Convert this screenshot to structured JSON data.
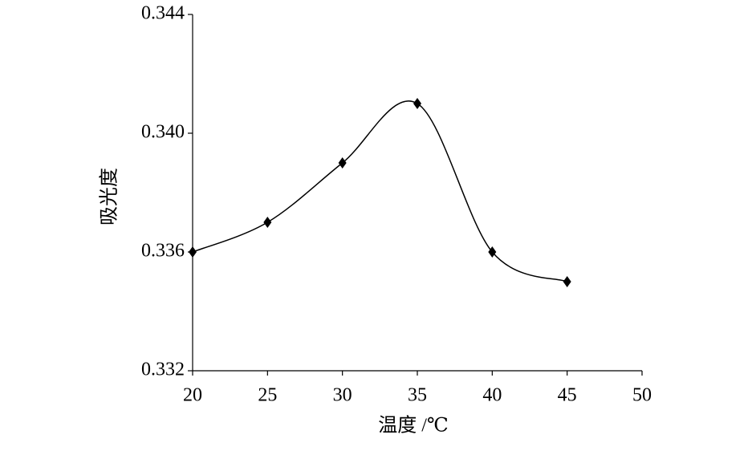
{
  "chart_data": {
    "type": "line",
    "x": [
      20,
      25,
      30,
      35,
      40,
      45
    ],
    "values": [
      0.336,
      0.337,
      0.339,
      0.341,
      0.336,
      0.335
    ],
    "color": "#000000",
    "xlabel": "温度 /℃",
    "ylabel": "吸光度",
    "xlim": [
      20,
      50
    ],
    "xticks": [
      20,
      25,
      30,
      35,
      40,
      45,
      50
    ],
    "ylim": [
      0.332,
      0.344
    ],
    "yticks": [
      0.332,
      0.336,
      {
        "value": 0.34,
        "label": "0.340"
      },
      0.344
    ],
    "smooth": true,
    "marker": "diamond",
    "grid": false
  }
}
